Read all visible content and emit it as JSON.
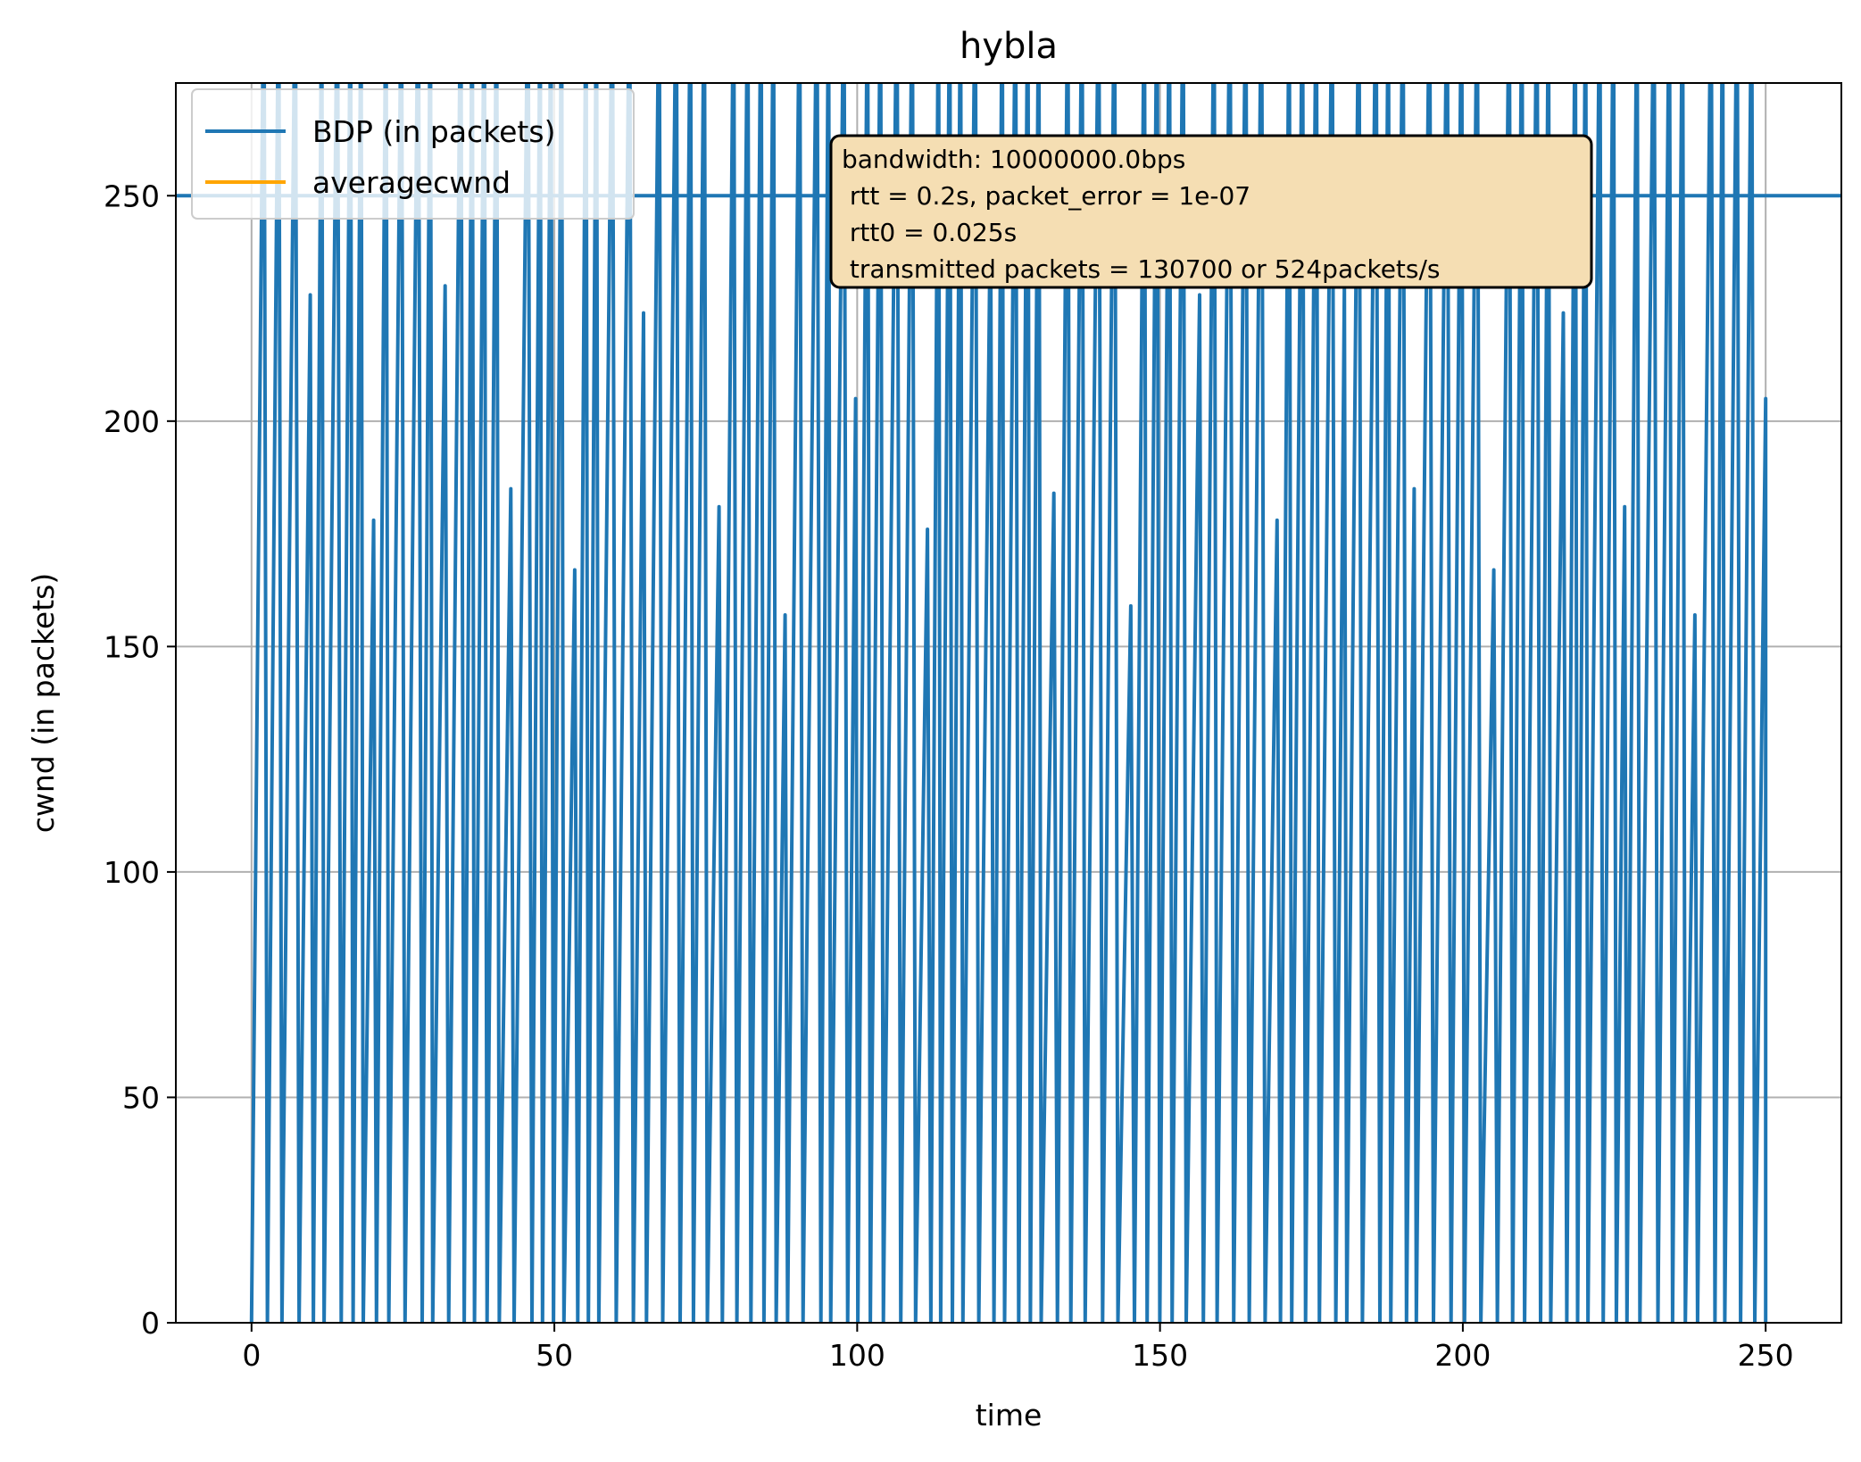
{
  "chart_data": {
    "type": "line",
    "title": "hybla",
    "xlabel": "time",
    "ylabel": "cwnd (in packets)",
    "xlim": [
      -12.5,
      262.5
    ],
    "ylim": [
      0,
      275
    ],
    "xticks": [
      0,
      50,
      100,
      150,
      200,
      250
    ],
    "yticks": [
      0,
      50,
      100,
      150,
      200,
      250
    ],
    "grid": true,
    "legend_location": "upper-left",
    "series": [
      {
        "name": "BDP (in packets)",
        "color": "#1f77b4",
        "kind": "horizontal-line",
        "y": 250
      },
      {
        "name": "averagecwnd",
        "color": "#ffa500",
        "kind": "empty"
      },
      {
        "name": "cwnd",
        "color": "#1f77b4",
        "kind": "sawtooth",
        "x_start": 0,
        "x_end": 250,
        "cycle_period_approx": 2.3,
        "min": 0,
        "peak_max": 275,
        "notable_peak_values": [
          230,
          251,
          224,
          228,
          205,
          185,
          184,
          181,
          178,
          176,
          167,
          159,
          157
        ]
      }
    ],
    "annotation": {
      "lines": [
        "bandwidth: 10000000.0bps",
        " rtt = 0.2s, packet_error = 1e-07",
        " rtt0 = 0.025s",
        " transmitted packets = 130700 or 524packets/s"
      ],
      "background": "#f5deb3",
      "anchor": "top-center"
    }
  }
}
